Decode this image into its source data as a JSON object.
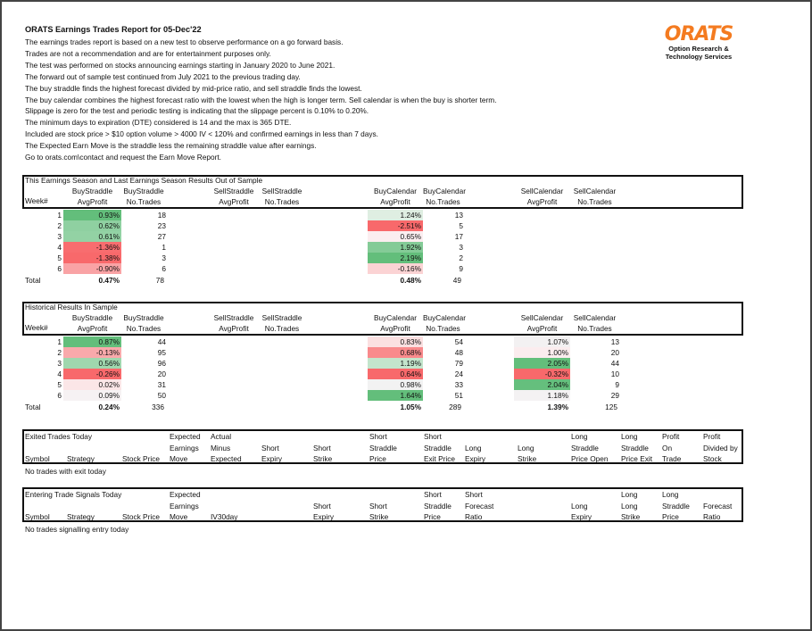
{
  "report": {
    "title": "ORATS Earnings Trades Report for 05-Dec'22",
    "lines": [
      "The earnings trades report is based on a new test to observe performance on a go forward basis.",
      "Trades are not a recommendation and are for entertainment purposes only.",
      "The test was performed on stocks announcing earnings starting in January 2020 to June 2021.",
      "The forward out of sample test continued from July 2021 to the previous trading day.",
      "The buy straddle finds the highest forecast divided by mid-price ratio, and sell straddle finds the lowest.",
      "The buy calendar combines the highest forecast ratio with the lowest when the high is longer term. Sell calendar is when the buy is shorter term.",
      "Slippage is zero for the test and periodic testing is indicating that the slippage percent is 0.10% to 0.20%.",
      "The minimum days to expiration (DTE) considered is 14 and the max is 365 DTE.",
      "Included are stock price > $10 option volume > 4000 IV < 120% and confirmed earnings in less than 7 days.",
      "The Expected Earn Move is the straddle less the remaining straddle value after earnings.",
      "Go to orats.com\\contact and request the Earn Move Report."
    ]
  },
  "logo": {
    "text": "ORATS",
    "subtitle_1": "Option Research &",
    "subtitle_2": "Technology Services",
    "color": "#f47b20"
  },
  "colors": {
    "strong_green": "#63be7b",
    "strong_red": "#f8696b"
  },
  "sections": [
    {
      "title": "This Earnings Season and Last Earnings Season Results Out of Sample",
      "headers": {
        "week": "Week#",
        "bs_avg": [
          "BuyStraddle",
          "AvgProfit"
        ],
        "bs_n": [
          "BuyStraddle",
          "No.Trades"
        ],
        "ss_avg": [
          "SellStraddle",
          "AvgProfit"
        ],
        "ss_n": [
          "SellStraddle",
          "No.Trades"
        ],
        "bc_avg": [
          "BuyCalendar",
          "AvgProfit"
        ],
        "bc_n": [
          "BuyCalendar",
          "No.Trades"
        ],
        "sc_avg": [
          "SellCalendar",
          "AvgProfit"
        ],
        "sc_n": [
          "SellCalendar",
          "No.Trades"
        ]
      },
      "rows": [
        {
          "week": "1",
          "bs_avg": "0.93%",
          "bs_avg_color": "#63be7b",
          "bs_n": "18",
          "bc_avg": "1.24%",
          "bc_avg_color": "#dfeee2",
          "bc_n": "13"
        },
        {
          "week": "2",
          "bs_avg": "0.62%",
          "bs_avg_color": "#8fd0a1",
          "bs_n": "23",
          "bc_avg": "-2.51%",
          "bc_avg_color": "#f8696b",
          "bc_n": "5"
        },
        {
          "week": "3",
          "bs_avg": "0.61%",
          "bs_avg_color": "#93d2a4",
          "bs_n": "27",
          "bc_avg": "0.65%",
          "bc_avg_color": "#fbeef0",
          "bc_n": "17"
        },
        {
          "week": "4",
          "bs_avg": "-1.36%",
          "bs_avg_color": "#f86d6f",
          "bs_n": "1",
          "bc_avg": "1.92%",
          "bc_avg_color": "#84cb97",
          "bc_n": "3"
        },
        {
          "week": "5",
          "bs_avg": "-1.38%",
          "bs_avg_color": "#f8696b",
          "bs_n": "3",
          "bc_avg": "2.19%",
          "bc_avg_color": "#63be7b",
          "bc_n": "2"
        },
        {
          "week": "6",
          "bs_avg": "-0.90%",
          "bs_avg_color": "#f9a3a5",
          "bs_n": "6",
          "bc_avg": "-0.16%",
          "bc_avg_color": "#fbd3d4",
          "bc_n": "9"
        }
      ],
      "total": {
        "label": "Total",
        "bs_avg": "0.47%",
        "bs_n": "78",
        "bc_avg": "0.48%",
        "bc_n": "49"
      }
    },
    {
      "title": "Historical Results In Sample",
      "headers": {
        "week": "Week#",
        "bs_avg": [
          "BuyStraddle",
          "AvgProfit"
        ],
        "bs_n": [
          "BuyStraddle",
          "No.Trades"
        ],
        "ss_avg": [
          "SellStraddle",
          "AvgProfit"
        ],
        "ss_n": [
          "SellStraddle",
          "No.Trades"
        ],
        "bc_avg": [
          "BuyCalendar",
          "AvgProfit"
        ],
        "bc_n": [
          "BuyCalendar",
          "No.Trades"
        ],
        "sc_avg": [
          "SellCalendar",
          "AvgProfit"
        ],
        "sc_n": [
          "SellCalendar",
          "No.Trades"
        ]
      },
      "rows": [
        {
          "week": "1",
          "bs_avg": "0.87%",
          "bs_avg_color": "#63be7b",
          "bs_n": "44",
          "bc_avg": "0.83%",
          "bc_avg_color": "#fbe0e1",
          "bc_n": "54",
          "sc_avg": "1.07%",
          "sc_avg_color": "#f3f1f2",
          "sc_n": "13"
        },
        {
          "week": "2",
          "bs_avg": "-0.13%",
          "bs_avg_color": "#f9a9ab",
          "bs_n": "95",
          "bc_avg": "0.68%",
          "bc_avg_color": "#f98a8c",
          "bc_n": "48",
          "sc_avg": "1.00%",
          "sc_avg_color": "#fbecee",
          "sc_n": "20"
        },
        {
          "week": "3",
          "bs_avg": "0.56%",
          "bs_avg_color": "#9fd7ae",
          "bs_n": "96",
          "bc_avg": "1.19%",
          "bc_avg_color": "#c3e5cc",
          "bc_n": "79",
          "sc_avg": "2.05%",
          "sc_avg_color": "#63be7b",
          "sc_n": "44"
        },
        {
          "week": "4",
          "bs_avg": "-0.26%",
          "bs_avg_color": "#f8696b",
          "bs_n": "20",
          "bc_avg": "0.64%",
          "bc_avg_color": "#f8696b",
          "bc_n": "24",
          "sc_avg": "-0.32%",
          "sc_avg_color": "#f8696b",
          "sc_n": "10"
        },
        {
          "week": "5",
          "bs_avg": "0.02%",
          "bs_avg_color": "#fbe6e7",
          "bs_n": "31",
          "bc_avg": "0.98%",
          "bc_avg_color": "#f2f2f2",
          "bc_n": "33",
          "sc_avg": "2.04%",
          "sc_avg_color": "#65bf7d",
          "sc_n": "9"
        },
        {
          "week": "6",
          "bs_avg": "0.09%",
          "bs_avg_color": "#f6f2f3",
          "bs_n": "50",
          "bc_avg": "1.64%",
          "bc_avg_color": "#63be7b",
          "bc_n": "51",
          "sc_avg": "1.18%",
          "sc_avg_color": "#f4f2f3",
          "sc_n": "29"
        }
      ],
      "total": {
        "label": "Total",
        "bs_avg": "0.24%",
        "bs_n": "336",
        "bc_avg": "1.05%",
        "bc_n": "289",
        "sc_avg": "1.39%",
        "sc_n": "125"
      }
    }
  ],
  "exited": {
    "title": "Exited Trades Today",
    "columns": [
      [
        "",
        "",
        "Symbol"
      ],
      [
        "",
        "",
        "Strategy"
      ],
      [
        "",
        "",
        "Stock Price"
      ],
      [
        "Expected",
        "Earnings",
        "Move"
      ],
      [
        "Actual",
        "Minus",
        "Expected"
      ],
      [
        "",
        "Short",
        "Expiry"
      ],
      [
        "",
        "Short",
        "Strike"
      ],
      [
        "Short",
        "Straddle",
        "Price"
      ],
      [
        "Short",
        "Straddle",
        "Exit Price"
      ],
      [
        "",
        "Long",
        "Expiry"
      ],
      [
        "",
        "Long",
        "Strike"
      ],
      [
        "Long",
        "Straddle",
        "Price Open"
      ],
      [
        "Long",
        "Straddle",
        "Price Exit"
      ],
      [
        "Profit",
        "On",
        "Trade"
      ],
      [
        "Profit",
        "Divided by",
        "Stock"
      ]
    ],
    "empty_message": "No trades with exit today"
  },
  "entering": {
    "title": "Entering Trade Signals Today",
    "columns": [
      [
        "",
        "",
        "Symbol"
      ],
      [
        "",
        "",
        "Strategy"
      ],
      [
        "",
        "",
        "Stock Price"
      ],
      [
        "Expected",
        "Earnings",
        "Move"
      ],
      [
        "",
        "",
        "IV30day"
      ],
      [
        "",
        "Short",
        "Expiry"
      ],
      [
        "",
        "Short",
        "Strike"
      ],
      [
        "Short",
        "Straddle",
        "Price"
      ],
      [
        "Short",
        "Forecast",
        "Ratio"
      ],
      [
        "",
        "Long",
        "Expiry"
      ],
      [
        "Long",
        "Long",
        "Strike"
      ],
      [
        "Long",
        "Straddle",
        "Price"
      ],
      [
        "",
        "Forecast",
        "Ratio"
      ]
    ],
    "empty_message": "No trades signalling entry today"
  }
}
